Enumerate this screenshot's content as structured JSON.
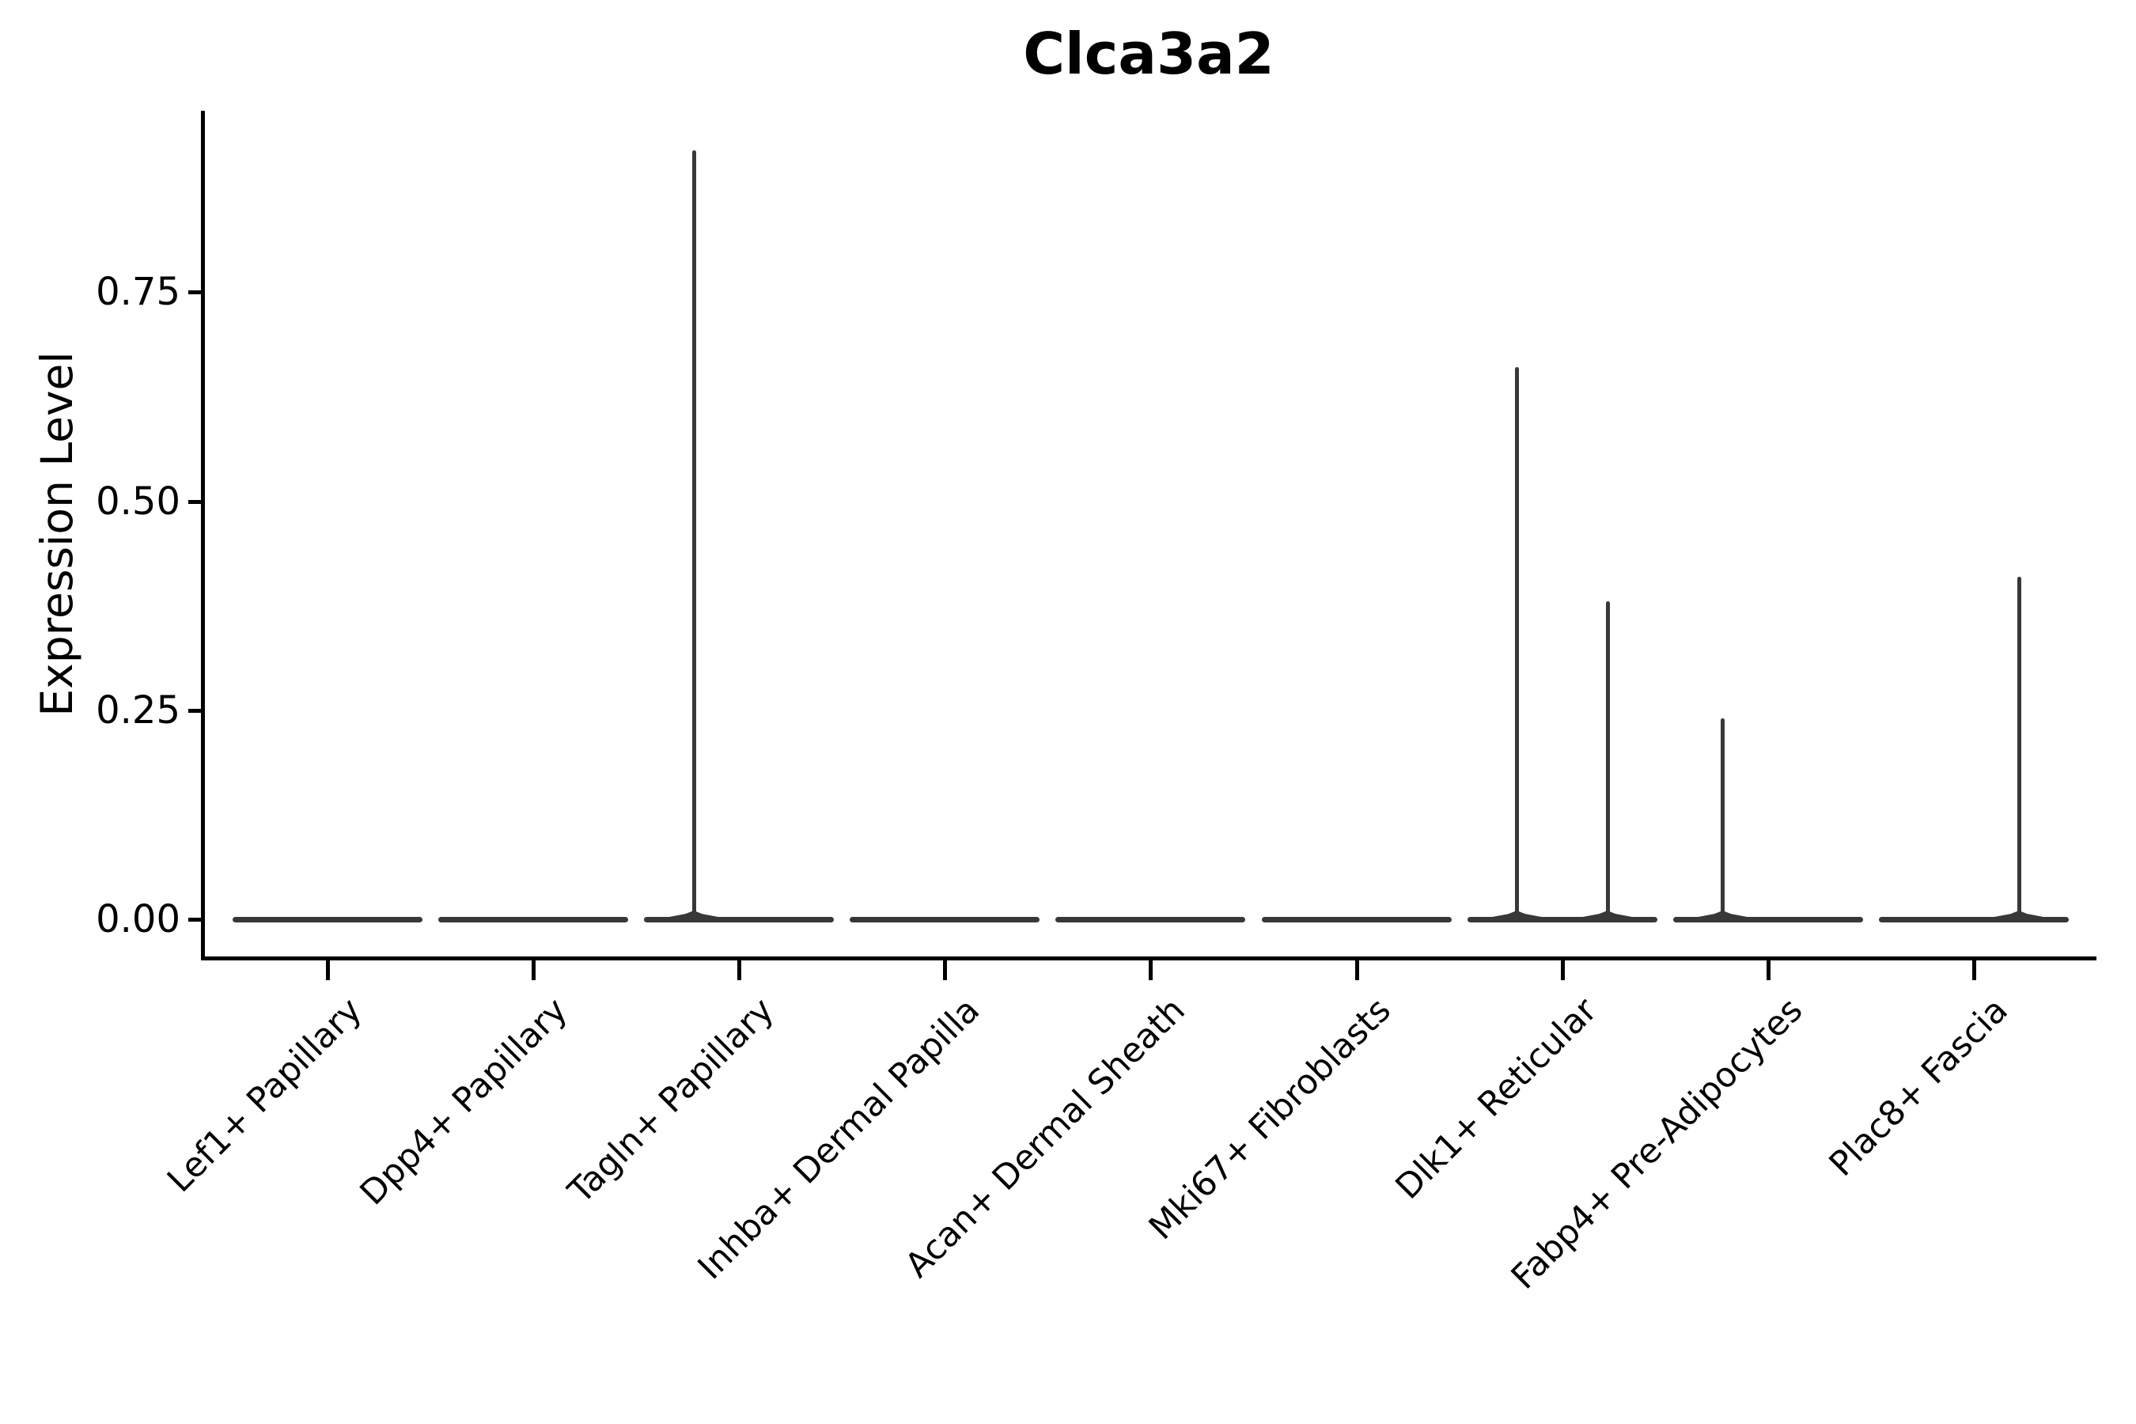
{
  "title": "Clca3a2",
  "y_axis": {
    "label": "Expression Level"
  },
  "chart_data": {
    "type": "violin",
    "title": "Clca3a2",
    "xlabel": "",
    "ylabel": "Expression Level",
    "ylim": [
      0,
      0.97
    ],
    "grid": false,
    "legend": false,
    "x_tick_rotation_deg": 45,
    "yticks": [
      {
        "value": 0.0,
        "label": "0.00"
      },
      {
        "value": 0.25,
        "label": "0.25"
      },
      {
        "value": 0.5,
        "label": "0.50"
      },
      {
        "value": 0.75,
        "label": "0.75"
      }
    ],
    "categories": [
      "Lef1+ Papillary",
      "Dpp4+ Papillary",
      "Tagln+ Papillary",
      "Inhba+ Dermal Papilla",
      "Acan+ Dermal Sheath",
      "Mki67+ Fibroblasts",
      "Dlk1+ Reticular",
      "Fabp4+ Pre-Adipocytes",
      "Plac8+ Fascia"
    ],
    "baseline_values": [
      0,
      0,
      0,
      0,
      0,
      0,
      0,
      0,
      0
    ],
    "violins_note": "All nine violins are collapsed flat at expression level 0; thin vertical spikes mark rare cells with nonzero expression.",
    "spikes": [
      {
        "category": "Tagln+ Papillary",
        "max_value": 0.92,
        "offset_frac": -0.22
      },
      {
        "category": "Dlk1+ Reticular",
        "max_value": 0.66,
        "offset_frac": -0.22
      },
      {
        "category": "Dlk1+ Reticular",
        "max_value": 0.38,
        "offset_frac": 0.22
      },
      {
        "category": "Fabp4+ Pre-Adipocytes",
        "max_value": 0.24,
        "offset_frac": -0.22
      },
      {
        "category": "Plac8+ Fascia",
        "max_value": 0.41,
        "offset_frac": 0.22
      }
    ],
    "colors": {
      "violin_fill": "#383838",
      "axis": "#000000",
      "text": "#000000",
      "background": "#ffffff"
    }
  }
}
